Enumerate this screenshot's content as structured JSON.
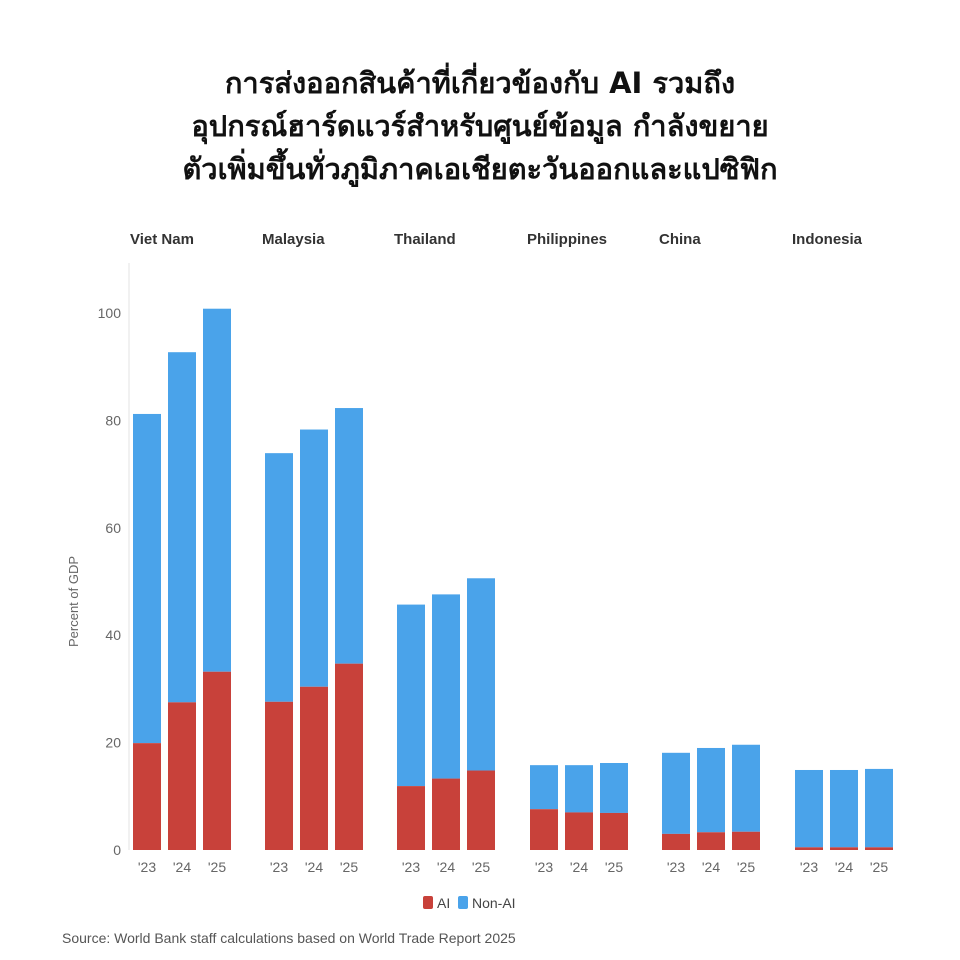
{
  "title_lines": [
    "การส่งออกสินค้าที่เกี่ยวข้องกับ AI รวมถึง",
    "อุปกรณ์ฮาร์ดแวร์สำหรับศูนย์ข้อมูล กำลังขยาย",
    "ตัวเพิ่มขึ้นทั่วภูมิภาคเอเชียตะวันออกและแปซิฟิก"
  ],
  "source": "Source: World Bank staff calculations based on World Trade Report 2025",
  "colors": {
    "ai": "#c8413a",
    "non_ai": "#4aa3ea"
  },
  "chart_data": {
    "type": "bar",
    "stacked": true,
    "ylabel": "Percent of GDP",
    "ylim": [
      0,
      100
    ],
    "yticks": [
      0,
      20,
      40,
      60,
      80,
      100
    ],
    "years": [
      "'23",
      "'24",
      "'25"
    ],
    "legend": [
      "AI",
      "Non-AI"
    ],
    "legend_position": "bottom-center",
    "groups": [
      {
        "country": "Viet Nam",
        "ai": [
          19.9,
          27.5,
          33.2
        ],
        "total": [
          81.2,
          92.7,
          100.8
        ]
      },
      {
        "country": "Malaysia",
        "ai": [
          27.6,
          30.4,
          34.7
        ],
        "total": [
          73.9,
          78.3,
          82.3
        ]
      },
      {
        "country": "Thailand",
        "ai": [
          11.9,
          13.3,
          14.8
        ],
        "total": [
          45.7,
          47.6,
          50.6
        ]
      },
      {
        "country": "Philippines",
        "ai": [
          7.6,
          7.0,
          6.9
        ],
        "total": [
          15.8,
          15.8,
          16.2
        ]
      },
      {
        "country": "China",
        "ai": [
          3.0,
          3.3,
          3.4
        ],
        "total": [
          18.1,
          19.0,
          19.6
        ]
      },
      {
        "country": "Indonesia",
        "ai": [
          0.5,
          0.5,
          0.5
        ],
        "total": [
          14.9,
          14.9,
          15.1
        ]
      }
    ]
  }
}
